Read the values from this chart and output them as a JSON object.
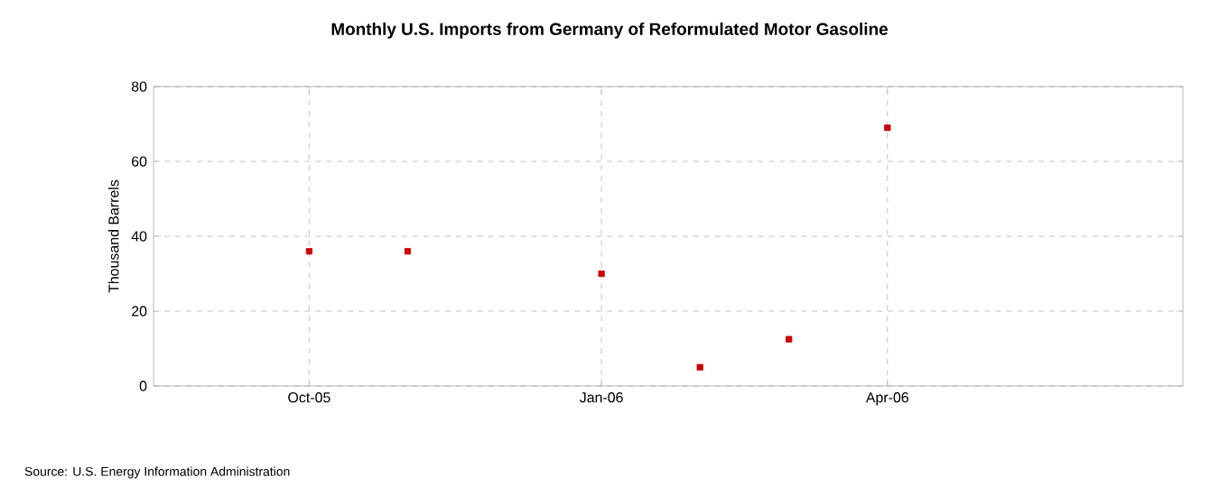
{
  "chart_data": {
    "type": "scatter",
    "title": "Monthly U.S. Imports from Germany of Reformulated Motor Gasoline",
    "ylabel": "Thousand Barrels",
    "x": [
      "2005-10",
      "2005-11",
      "2006-01",
      "2006-02",
      "2006-03",
      "2006-04"
    ],
    "series": [
      {
        "color": "#cc0000",
        "values": [
          36,
          36,
          30,
          5,
          12.5,
          69
        ]
      }
    ],
    "xlim": [
      "2005-08-13",
      "2006-07-03"
    ],
    "xticks": [
      {
        "value": "2005-10",
        "label": "Oct-05"
      },
      {
        "value": "2006-01",
        "label": "Jan-06"
      },
      {
        "value": "2006-04",
        "label": "Apr-06"
      }
    ],
    "ylim": [
      0,
      80
    ],
    "yticks": [
      0,
      20,
      40,
      60,
      80
    ],
    "grid": true,
    "marker": "square",
    "annotations": [
      "Source: U.S. Energy Information Administration"
    ]
  }
}
